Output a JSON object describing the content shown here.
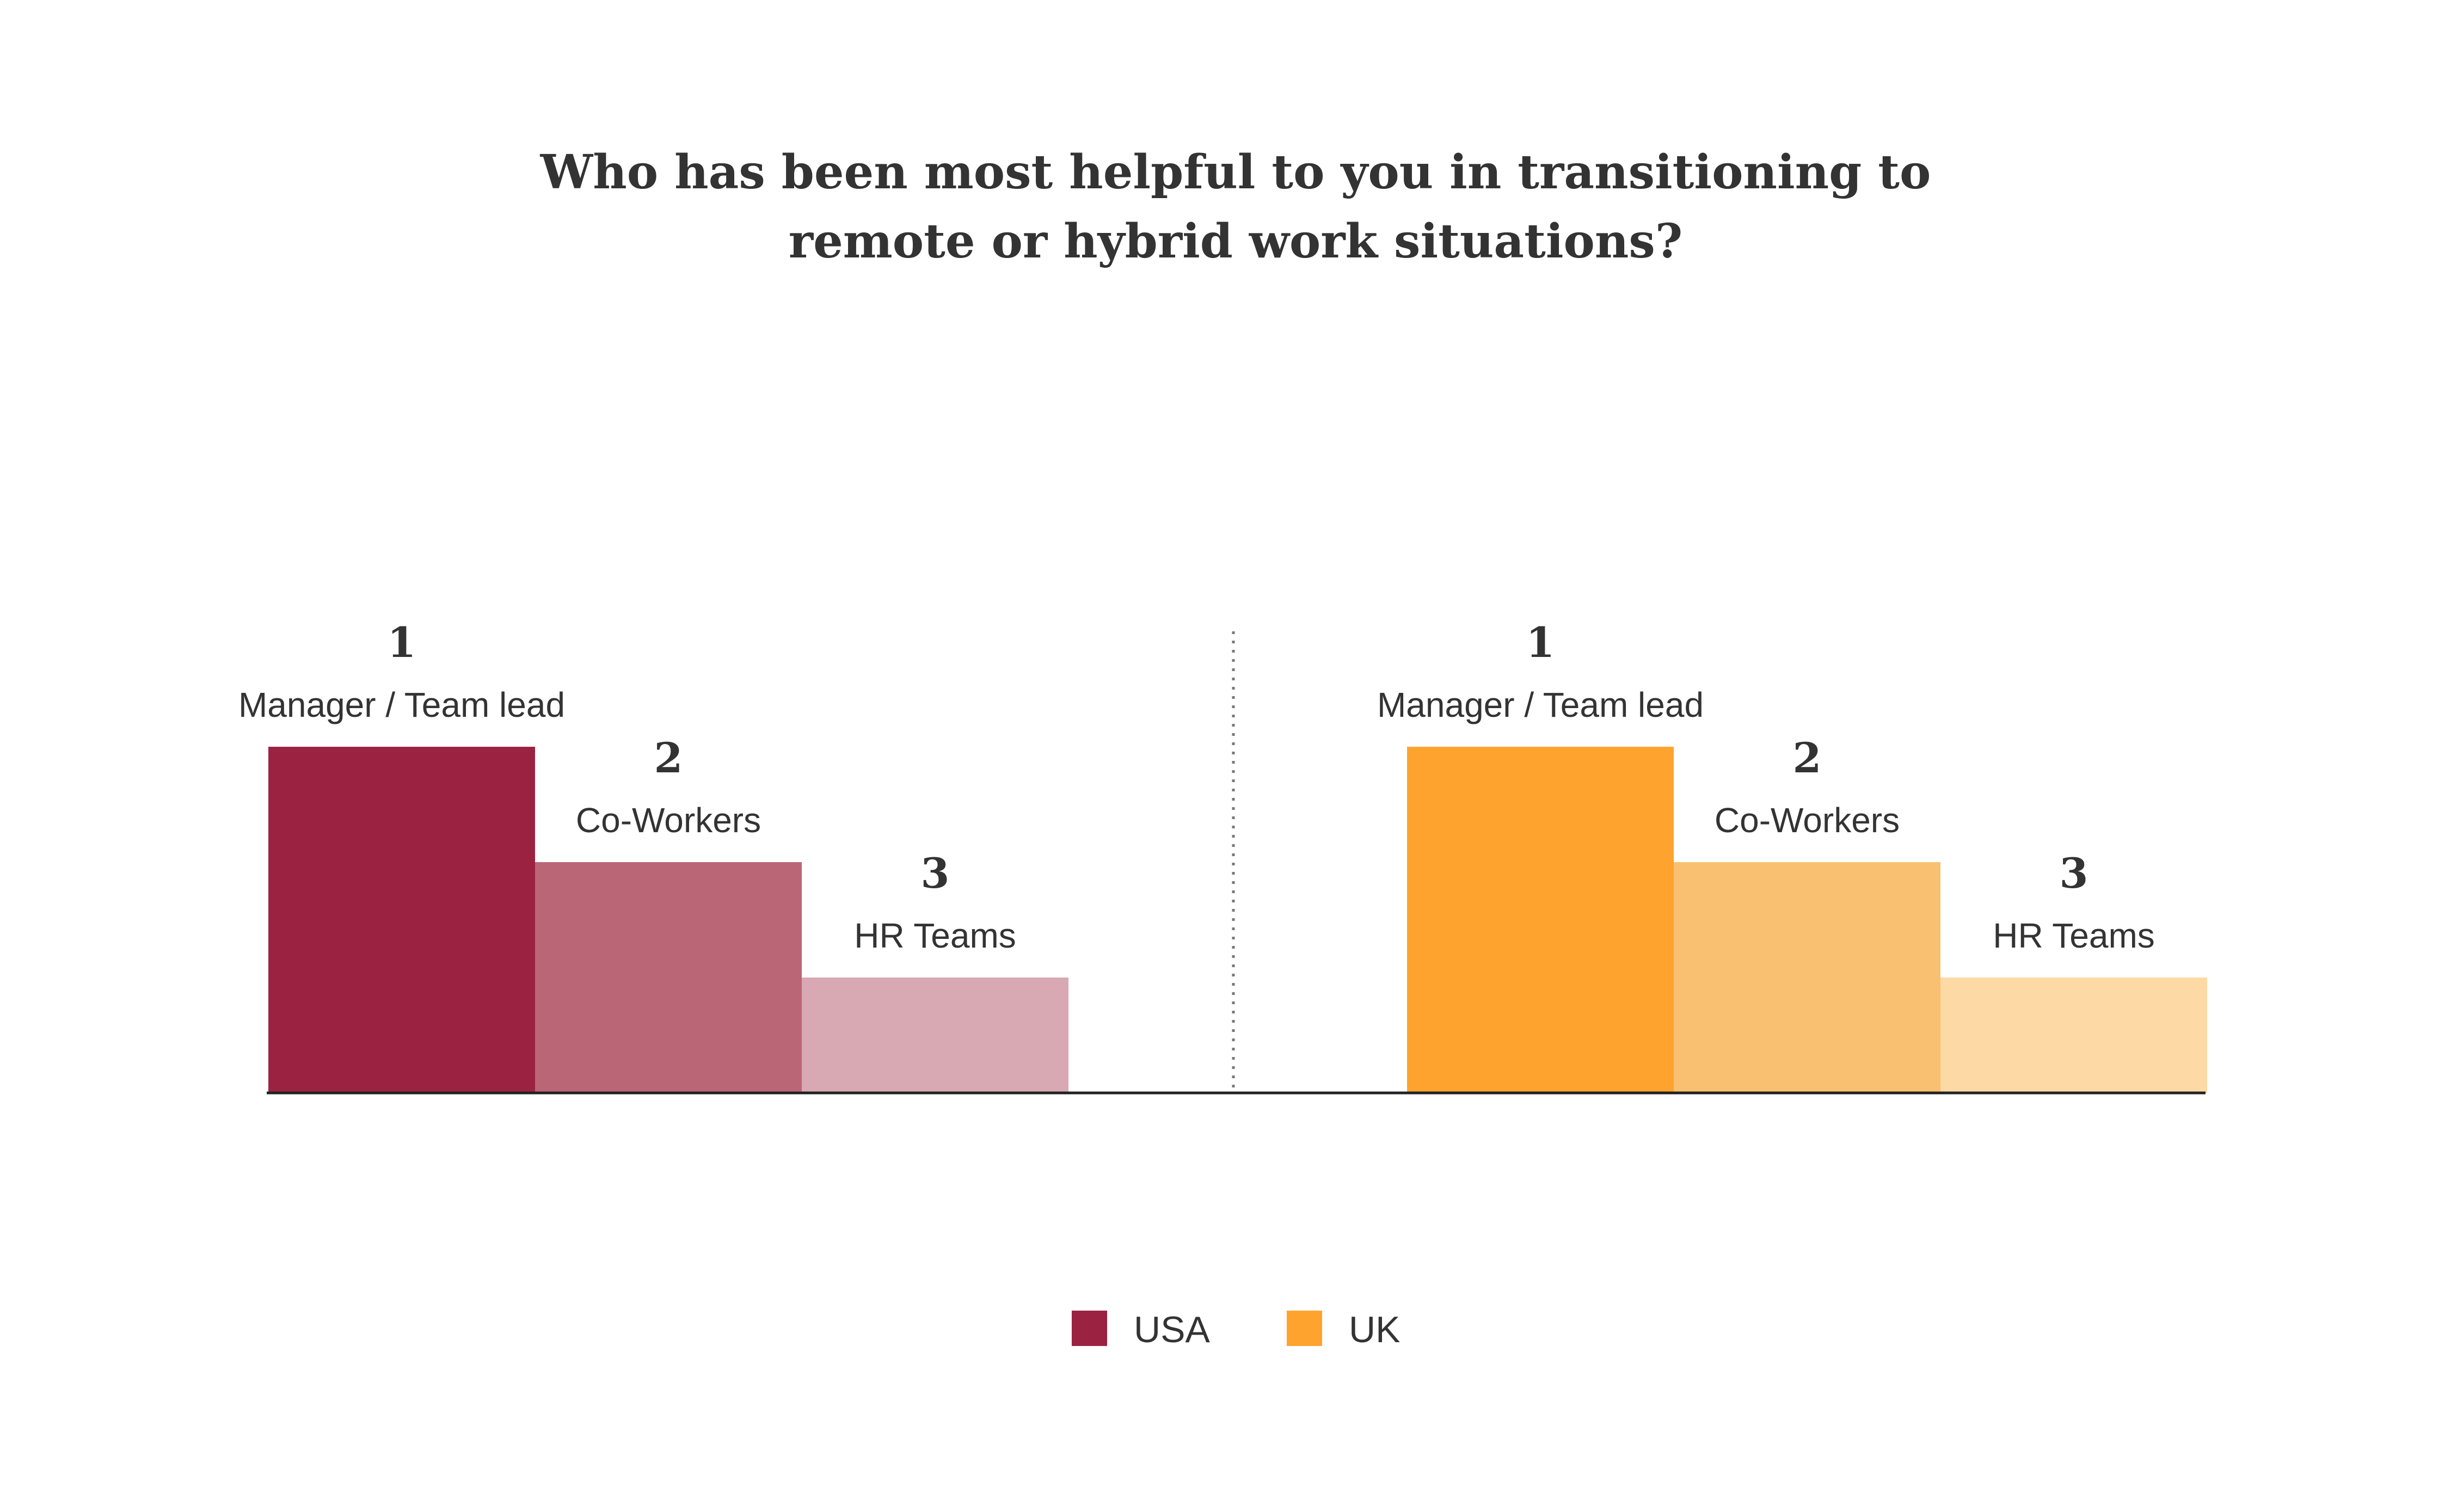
{
  "title_lines": [
    "Who has been most helpful to you in transitioning to",
    "remote or hybrid work situations?"
  ],
  "chart_data": [
    {
      "type": "bar",
      "series_name": "USA",
      "categories": [
        "Manager / Team lead",
        "Co-Workers",
        "HR Teams"
      ],
      "ranks": [
        "1",
        "2",
        "3"
      ],
      "values": [
        3,
        2,
        1
      ],
      "colors": [
        "#9c2242",
        "#bb6677",
        "#d8a8b3"
      ]
    },
    {
      "type": "bar",
      "series_name": "UK",
      "categories": [
        "Manager / Team lead",
        "Co-Workers",
        "HR Teams"
      ],
      "ranks": [
        "1",
        "2",
        "3"
      ],
      "values": [
        3,
        2,
        1
      ],
      "colors": [
        "#ffa32f",
        "#f8c070",
        "#fdd9a6"
      ]
    }
  ],
  "legend": [
    {
      "label": "USA",
      "color": "#9c2242"
    },
    {
      "label": "UK",
      "color": "#ffa32f"
    }
  ]
}
